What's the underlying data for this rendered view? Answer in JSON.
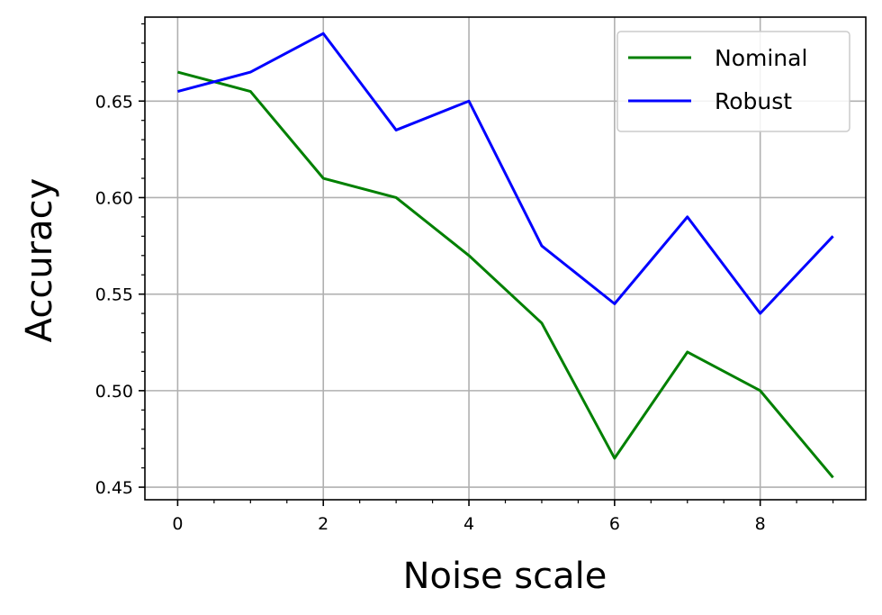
{
  "chart_data": {
    "type": "line",
    "xlabel": "Noise scale",
    "ylabel": "Accuracy",
    "x": [
      0,
      1,
      2,
      3,
      4,
      5,
      6,
      7,
      8,
      9
    ],
    "xlim": [
      -0.45,
      9.45
    ],
    "ylim": [
      0.4435,
      0.6935
    ],
    "xticks": [
      0,
      2,
      4,
      6,
      8
    ],
    "xtick_labels": [
      "0",
      "2",
      "4",
      "6",
      "8"
    ],
    "yticks": [
      0.45,
      0.5,
      0.55,
      0.6,
      0.65
    ],
    "ytick_labels": [
      "0.45",
      "0.50",
      "0.55",
      "0.60",
      "0.65"
    ],
    "grid": true,
    "legend_position": "top-right",
    "series": [
      {
        "name": "Nominal",
        "color": "#008000",
        "values": [
          0.665,
          0.655,
          0.61,
          0.6,
          0.57,
          0.535,
          0.465,
          0.52,
          0.5,
          0.455
        ]
      },
      {
        "name": "Robust",
        "color": "#0000ff",
        "values": [
          0.655,
          0.665,
          0.685,
          0.635,
          0.65,
          0.575,
          0.545,
          0.59,
          0.54,
          0.58
        ]
      }
    ]
  }
}
